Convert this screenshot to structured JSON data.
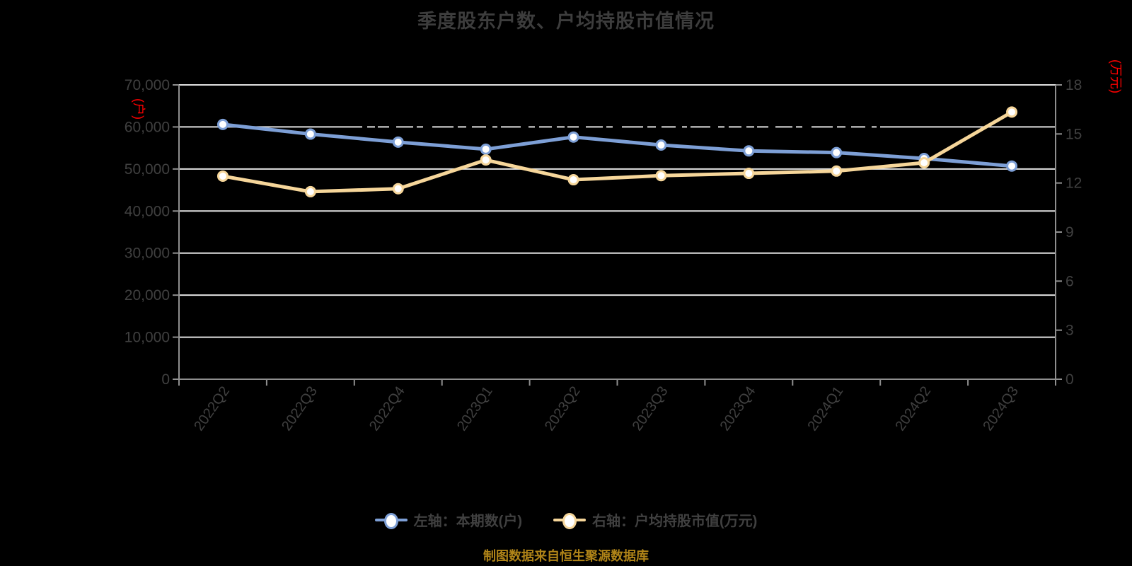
{
  "title": "季度股东户数、户均持股市值情况",
  "footer": "制图数据来自恒生聚源数据库",
  "colors": {
    "background": "#000000",
    "title_text": "#3d3d3d",
    "axis_text": "#404040",
    "axis_line": "#8f8f8f",
    "gridline": "#e2e2e2",
    "unit_label_red": "#ff0000",
    "footer_text": "#b08418",
    "series_blue": "#7d9fd6",
    "series_yellow": "#f6d69a",
    "marker_fill": "#ffffff"
  },
  "left_axis": {
    "unit": "(户)",
    "ticks": [
      "0",
      "10,000",
      "20,000",
      "30,000",
      "40,000",
      "50,000",
      "60,000",
      "70,000"
    ]
  },
  "right_axis": {
    "unit": "(万元)",
    "ticks": [
      "0",
      "3",
      "6",
      "9",
      "12",
      "15",
      "18"
    ]
  },
  "legend": {
    "items": [
      {
        "label": "左轴：本期数(户)",
        "color": "#7d9fd6"
      },
      {
        "label": "右轴：户均持股市值(万元)",
        "color": "#f6d69a"
      }
    ]
  },
  "chart_data": {
    "type": "line",
    "categories": [
      "2022Q2",
      "2022Q3",
      "2022Q4",
      "2023Q1",
      "2023Q2",
      "2023Q3",
      "2023Q4",
      "2024Q1",
      "2024Q2",
      "2024Q3"
    ],
    "series": [
      {
        "name": "左轴：本期数(户)",
        "axis": "left",
        "color": "#7d9fd6",
        "values": [
          60600,
          58300,
          56400,
          54700,
          57600,
          55700,
          54300,
          53900,
          52500,
          50700
        ]
      },
      {
        "name": "右轴：户均持股市值(万元)",
        "axis": "right",
        "color": "#f6d69a",
        "values": [
          12.42,
          11.47,
          11.65,
          13.41,
          12.2,
          12.45,
          12.59,
          12.73,
          13.24,
          16.34
        ]
      }
    ],
    "title": "季度股东户数、户均持股市值情况",
    "xlabel": "",
    "ylabel_left": "(户)",
    "ylabel_right": "(万元)",
    "left_ylim": [
      0,
      70000
    ],
    "right_ylim": [
      0,
      18
    ],
    "grid": true,
    "legend_position": "bottom"
  }
}
